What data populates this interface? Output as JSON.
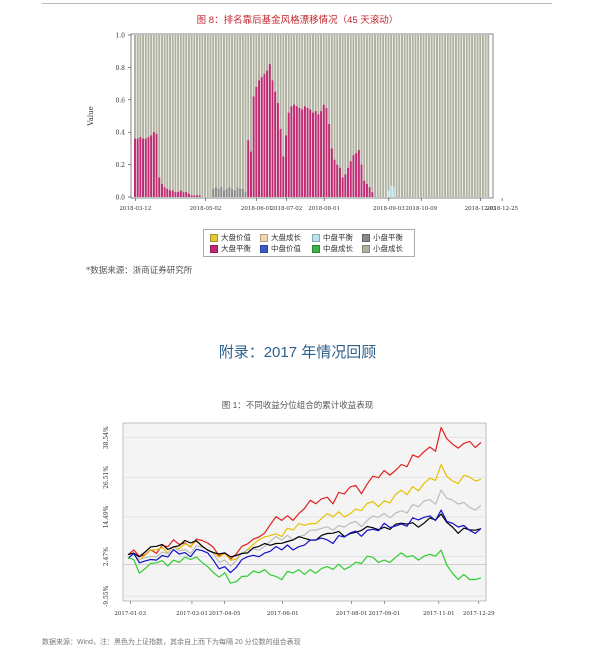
{
  "figure8": {
    "title": "图 8：排名靠后基金风格漂移情况（45 天滚动）",
    "source": "*数据来源：浙商证券研究所",
    "chart_data": {
      "type": "stacked bar",
      "ylabel": "Value",
      "ylim": [
        0,
        1.0
      ],
      "yticks": [
        "0.0",
        "0.2",
        "0.4",
        "0.6",
        "0.8",
        "1.0"
      ],
      "xtick_labels": [
        "2018-03-12",
        "2018-05-02",
        "2018-06-01",
        "2018-07-02",
        "2018-08-01",
        "2018-09-03",
        "2018-10-09",
        "2018-12-03",
        "2018-12-25"
      ],
      "legend": [
        {
          "label": "大盘价值",
          "color": "#e3c93a"
        },
        {
          "label": "大盘成长",
          "color": "#f2d6b4"
        },
        {
          "label": "中盘平衡",
          "color": "#b9e2ee"
        },
        {
          "label": "小盘平衡",
          "color": "#8a8a8a"
        },
        {
          "label": "大盘平衡",
          "color": "#bf2a73"
        },
        {
          "label": "中盘价值",
          "color": "#3b5dc9"
        },
        {
          "label": "中盘成长",
          "color": "#3bb24a"
        },
        {
          "label": "小盘成长",
          "color": "#b0b0a0"
        }
      ],
      "series": [
        {
          "name": "大盘平衡",
          "values": [
            0.36,
            0.36,
            0.37,
            0.36,
            0.36,
            0.37,
            0.38,
            0.4,
            0.39,
            0.12,
            0.08,
            0.06,
            0.05,
            0.04,
            0.04,
            0.03,
            0.03,
            0.04,
            0.03,
            0.03,
            0.02,
            0.01,
            0.01,
            0.01,
            0.01,
            0,
            0,
            0,
            0,
            0,
            0,
            0,
            0,
            0,
            0,
            0,
            0,
            0,
            0,
            0,
            0,
            0,
            0.35,
            0.28,
            0.62,
            0.68,
            0.72,
            0.74,
            0.76,
            0.78,
            0.82,
            0.72,
            0.65,
            0.58,
            0.42,
            0.25,
            0.38,
            0.52,
            0.56,
            0.57,
            0.56,
            0.55,
            0.54,
            0.56,
            0.55,
            0.54,
            0.52,
            0.53,
            0.51,
            0.53,
            0.57,
            0.55,
            0.45,
            0.3,
            0.23,
            0.2,
            0.18,
            0.12,
            0.14,
            0.18,
            0.22,
            0.26,
            0.27,
            0.29,
            0.2,
            0.1,
            0.08,
            0.06,
            0.03,
            0,
            0,
            0,
            0,
            0,
            0,
            0,
            0,
            0,
            0,
            0,
            0,
            0,
            0,
            0,
            0,
            0,
            0,
            0,
            0,
            0,
            0,
            0,
            0,
            0,
            0,
            0,
            0,
            0,
            0,
            0,
            0,
            0,
            0,
            0,
            0,
            0,
            0,
            0,
            0,
            0,
            0,
            0
          ]
        },
        {
          "name": "小盘平衡",
          "values": [
            0,
            0,
            0,
            0,
            0,
            0,
            0,
            0,
            0,
            0,
            0,
            0,
            0,
            0,
            0,
            0,
            0,
            0,
            0,
            0,
            0,
            0,
            0,
            0,
            0,
            0,
            0,
            0,
            0,
            0.05,
            0.06,
            0.05,
            0.06,
            0.04,
            0.05,
            0.06,
            0.05,
            0.04,
            0.06,
            0.05,
            0.05,
            0.03,
            0,
            0,
            0,
            0,
            0,
            0,
            0,
            0,
            0,
            0,
            0,
            0,
            0,
            0,
            0,
            0,
            0,
            0,
            0,
            0,
            0,
            0,
            0,
            0,
            0,
            0,
            0,
            0,
            0,
            0,
            0,
            0,
            0,
            0,
            0,
            0,
            0,
            0,
            0,
            0,
            0,
            0,
            0,
            0,
            0,
            0,
            0,
            0,
            0,
            0,
            0,
            0,
            0,
            0,
            0,
            0,
            0,
            0,
            0,
            0,
            0,
            0,
            0,
            0,
            0,
            0,
            0,
            0,
            0,
            0,
            0,
            0,
            0,
            0,
            0,
            0,
            0,
            0,
            0,
            0,
            0,
            0,
            0,
            0,
            0,
            0,
            0,
            0
          ]
        },
        {
          "name": "中盘平衡",
          "values": [
            0,
            0,
            0,
            0,
            0,
            0,
            0,
            0,
            0,
            0,
            0,
            0,
            0,
            0,
            0,
            0,
            0,
            0,
            0,
            0,
            0,
            0,
            0,
            0,
            0,
            0,
            0,
            0,
            0,
            0,
            0,
            0,
            0,
            0,
            0,
            0,
            0,
            0,
            0,
            0,
            0,
            0,
            0,
            0,
            0,
            0,
            0,
            0,
            0,
            0,
            0,
            0,
            0,
            0,
            0,
            0,
            0,
            0,
            0,
            0,
            0,
            0,
            0,
            0,
            0,
            0,
            0,
            0,
            0,
            0,
            0,
            0,
            0,
            0,
            0,
            0,
            0,
            0,
            0,
            0,
            0,
            0,
            0,
            0,
            0,
            0,
            0,
            0,
            0,
            0,
            0,
            0,
            0,
            0,
            0.04,
            0.07,
            0.06,
            0,
            0,
            0,
            0,
            0,
            0,
            0,
            0,
            0,
            0,
            0,
            0,
            0,
            0,
            0,
            0,
            0,
            0,
            0,
            0,
            0,
            0,
            0,
            0,
            0,
            0,
            0,
            0,
            0,
            0,
            0,
            0,
            0
          ]
        }
      ]
    }
  },
  "appendix_title": "附录：2017 年情况回顾",
  "figure1": {
    "title": "图 1：不同收益分位组合的累计收益表现",
    "source": "数据来源：Wind，注：黑色为上证指数，其余自上而下为每隔 20 分位数的组合表现",
    "chart_data": {
      "type": "line",
      "yticks": [
        "38.54%",
        "26.51%",
        "14.49%",
        "2.47%",
        "-9.55%"
      ],
      "ytick_values": [
        38.54,
        26.51,
        14.49,
        2.47,
        -9.55
      ],
      "ylim": [
        -11,
        43
      ],
      "x_labels": [
        "2017-01-03",
        "2017-03-01",
        "2017-04-05",
        "2017-06-01",
        "2017-08-01",
        "2017-09-01",
        "2017-11-01",
        "2017-12-29"
      ],
      "series": [
        {
          "color": "#e02020",
          "values": [
            3,
            4,
            2,
            3,
            5,
            4,
            6,
            5,
            7,
            6,
            7,
            6,
            8,
            7,
            6,
            5,
            3,
            4,
            2,
            3,
            5,
            6,
            8,
            9,
            10,
            12,
            14,
            13,
            15,
            14,
            16,
            17,
            19,
            18,
            20,
            21,
            19,
            22,
            21,
            23,
            24,
            22,
            25,
            27,
            26,
            28,
            27,
            29,
            31,
            30,
            33,
            32,
            34,
            36,
            35,
            42,
            38,
            36,
            35,
            37,
            38,
            36,
            37
          ]
        },
        {
          "color": "#e8c000",
          "values": [
            3,
            4,
            2,
            3,
            4,
            4,
            5,
            4,
            6,
            5,
            6,
            5,
            7,
            6,
            5,
            4,
            2,
            3,
            1,
            2,
            4,
            5,
            6,
            7,
            8,
            9,
            10,
            9,
            11,
            10,
            12,
            12,
            13,
            13,
            14,
            15,
            14,
            16,
            15,
            16,
            17,
            16,
            18,
            19,
            18,
            20,
            19,
            21,
            22,
            21,
            24,
            23,
            25,
            26,
            25,
            30,
            27,
            26,
            25,
            27,
            26,
            25,
            26
          ]
        },
        {
          "color": "#bcbcbc",
          "values": [
            3,
            3,
            1,
            2,
            3,
            3,
            4,
            3,
            5,
            4,
            5,
            4,
            6,
            5,
            4,
            3,
            1,
            2,
            0,
            1,
            3,
            4,
            5,
            5,
            6,
            7,
            8,
            7,
            9,
            8,
            9,
            9,
            10,
            10,
            11,
            12,
            11,
            12,
            11,
            12,
            13,
            12,
            14,
            15,
            14,
            15,
            14,
            16,
            17,
            16,
            18,
            17,
            19,
            20,
            19,
            23,
            20,
            19,
            18,
            19,
            18,
            17,
            18
          ]
        },
        {
          "color": "#000000",
          "values": [
            3,
            4,
            3,
            4,
            5,
            5,
            6,
            5,
            6,
            6,
            7,
            6,
            7,
            6,
            5,
            4,
            3,
            3,
            2,
            3,
            4,
            4,
            5,
            5,
            6,
            6,
            7,
            7,
            7,
            7,
            8,
            8,
            8,
            8,
            9,
            9,
            9,
            10,
            9,
            10,
            10,
            10,
            11,
            11,
            11,
            12,
            11,
            12,
            12,
            12,
            13,
            12,
            13,
            14,
            13,
            15,
            13,
            12,
            10,
            11,
            10,
            10,
            11
          ]
        },
        {
          "color": "#1010c8",
          "values": [
            2,
            3,
            0,
            1,
            2,
            2,
            3,
            2,
            4,
            3,
            4,
            3,
            5,
            4,
            3,
            1,
            -1,
            0,
            -2,
            -1,
            1,
            2,
            3,
            3,
            4,
            4,
            5,
            4,
            6,
            5,
            6,
            6,
            7,
            7,
            8,
            8,
            7,
            9,
            8,
            9,
            10,
            9,
            11,
            11,
            10,
            12,
            11,
            12,
            13,
            12,
            14,
            13,
            14,
            15,
            14,
            17,
            13,
            12,
            11,
            12,
            11,
            10,
            11
          ]
        },
        {
          "color": "#30cc30",
          "values": [
            2,
            2,
            -2,
            -1,
            0,
            0,
            1,
            0,
            2,
            1,
            2,
            1,
            2,
            1,
            0,
            -2,
            -4,
            -3,
            -6,
            -5,
            -3,
            -3,
            -2,
            -3,
            -2,
            -3,
            -3,
            -4,
            -2,
            -3,
            -2,
            -3,
            -1,
            -2,
            -1,
            -1,
            -2,
            0,
            -1,
            0,
            1,
            0,
            2,
            2,
            1,
            2,
            1,
            2,
            3,
            2,
            3,
            2,
            3,
            3,
            2,
            4,
            0,
            -2,
            -4,
            -3,
            -5,
            -5,
            -4
          ]
        }
      ]
    }
  }
}
